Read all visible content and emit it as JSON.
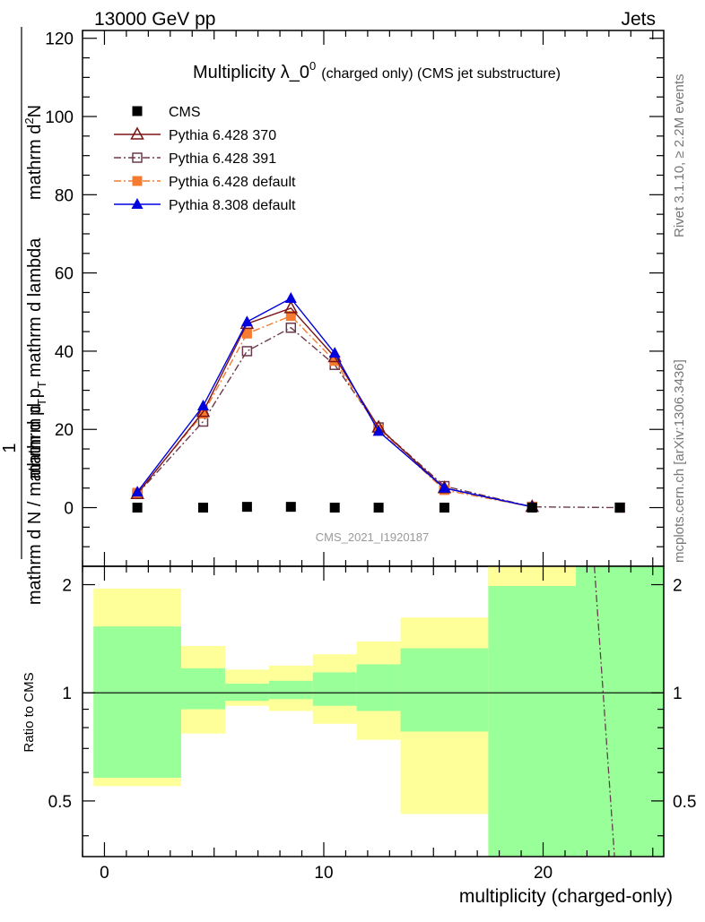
{
  "header": {
    "left": "13000 GeV pp",
    "right": "Jets"
  },
  "side_labels": {
    "rivet": "Rivet 3.1.10, ≥ 2.2M events",
    "mcplots": "mcplots.cern.ch [arXiv:1306.3436]"
  },
  "chart_data": [
    {
      "type": "line",
      "title": "Multiplicity λ_0",
      "title_sup": "0",
      "title_suffix": "(charged only) (CMS jet substructure)",
      "ylabel_top": "mathrm dN",
      "ylabel_top_prefix": "1",
      "ylabel_bottom": "mathrm d N / mathrm d p",
      "ylabel_bottom_sub": "T",
      "ylabel_bottom_2": "mathrm d p",
      "ylabel_bottom_2_sub": "T",
      "ylabel_bottom_3": "mathrm d lambda",
      "ylabel_prefix": "1",
      "ylabel_denominator": "mathrm d N / mathrm d p",
      "ylabel_denominator_sub": "T",
      "ylabel_numerator": "mathrm d",
      "ylabel_numerator_sup": "2",
      "ylabel_numerator_rest": "N",
      "ylabel_denominator_2": "mathrm d p",
      "ylabel_denominator_2_sub": "T",
      "ylabel_denominator_3": "mathrm d lambda",
      "watermark": "CMS_2021_I1920187",
      "xlim": [
        -1,
        25.5
      ],
      "ylim": [
        -15,
        122
      ],
      "yticks": [
        0,
        20,
        40,
        60,
        80,
        100,
        120
      ],
      "ytick_labels": [
        "0",
        "20",
        "40",
        "60",
        "80",
        "100",
        "120"
      ],
      "legend_position": "top-left",
      "series": [
        {
          "name": "CMS",
          "color": "#000000",
          "marker": "square-filled",
          "line": "none",
          "x": [
            1.5,
            4.5,
            6.5,
            8.5,
            10.5,
            12.5,
            15.5,
            19.5,
            23.5
          ],
          "y": [
            0.0,
            0.0,
            0.2,
            0.2,
            0.0,
            0.0,
            0.0,
            0.0,
            0.0
          ]
        },
        {
          "name": "Pythia 6.428 370",
          "color": "#7b1416",
          "marker": "triangle-open",
          "line": "solid",
          "x": [
            1.5,
            4.5,
            6.5,
            8.5,
            10.5,
            12.5,
            15.5,
            19.5
          ],
          "y": [
            3.5,
            24.5,
            47.0,
            51.0,
            38.5,
            20.5,
            5.0,
            0.2
          ]
        },
        {
          "name": "Pythia 6.428 391",
          "color": "#6b3a4e",
          "marker": "square-open",
          "line": "dashdot",
          "x": [
            1.5,
            4.5,
            6.5,
            8.5,
            10.5,
            12.5,
            15.5,
            19.5,
            23.5
          ],
          "y": [
            3.5,
            22.0,
            40.0,
            46.0,
            36.5,
            20.5,
            5.5,
            0.2,
            0.0
          ]
        },
        {
          "name": "Pythia 6.428 default",
          "color": "#f47b2f",
          "marker": "square-filled",
          "line": "dashdot",
          "x": [
            1.5,
            4.5,
            6.5,
            8.5,
            10.5,
            12.5,
            15.5,
            19.5
          ],
          "y": [
            3.8,
            24.0,
            44.5,
            49.0,
            37.5,
            20.0,
            4.5,
            0.2
          ]
        },
        {
          "name": "Pythia 8.308 default",
          "color": "#0000dd",
          "marker": "triangle-filled",
          "line": "solid",
          "x": [
            1.5,
            4.5,
            6.5,
            8.5,
            10.5,
            12.5,
            15.5,
            19.5
          ],
          "y": [
            4.0,
            26.0,
            47.5,
            53.5,
            39.5,
            19.5,
            5.0,
            0.2
          ]
        }
      ]
    },
    {
      "type": "area",
      "ylabel": "Ratio to CMS",
      "xlabel": "multiplicity (charged-only)",
      "xlim": [
        -1,
        25.5
      ],
      "ylim": [
        0.35,
        2.25
      ],
      "xticks": [
        0,
        10,
        20
      ],
      "xtick_labels": [
        "0",
        "10",
        "20"
      ],
      "yticks": [
        0.5,
        1,
        2
      ],
      "ytick_labels": [
        "0.5",
        "1",
        "2"
      ],
      "bands": {
        "bins": [
          [
            -0.5,
            3.5
          ],
          [
            3.5,
            5.5
          ],
          [
            5.5,
            7.5
          ],
          [
            7.5,
            9.5
          ],
          [
            9.5,
            11.5
          ],
          [
            11.5,
            13.5
          ],
          [
            13.5,
            17.5
          ],
          [
            17.5,
            25.5
          ]
        ],
        "stat_lo": [
          0.58,
          0.9,
          0.95,
          0.96,
          0.92,
          0.89,
          0.78,
          0.33
        ],
        "stat_hi": [
          1.53,
          1.17,
          1.06,
          1.08,
          1.14,
          1.2,
          1.33,
          2.5
        ],
        "tot_lo": [
          0.55,
          0.77,
          0.92,
          0.89,
          0.82,
          0.74,
          0.46,
          0.33
        ],
        "tot_hi": [
          1.95,
          1.35,
          1.16,
          1.19,
          1.28,
          1.39,
          1.62,
          2.5
        ],
        "tot_hi_last_yellow_end": 21.5,
        "stat_color": "#99ff99",
        "tot_color": "#ffff99"
      },
      "ratio_line": {
        "color": "#6b3a4e",
        "style": "dashdot",
        "x": [
          22.5,
          23.5
        ],
        "y": [
          2.4,
          0.3
        ]
      }
    }
  ]
}
